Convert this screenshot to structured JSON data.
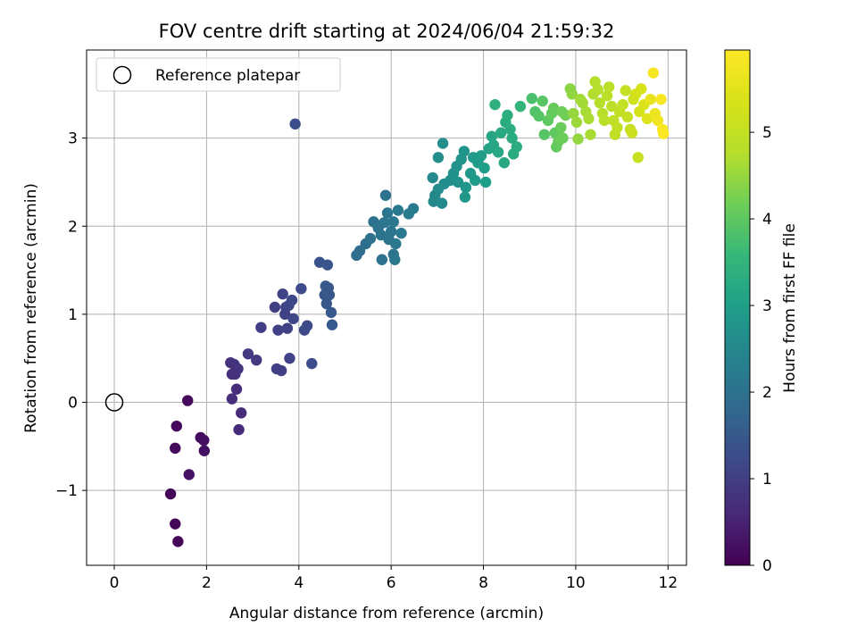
{
  "chart_data": {
    "type": "scatter",
    "title": "FOV centre drift starting at 2024/06/04 21:59:32",
    "xlabel": "Angular distance from reference (arcmin)",
    "ylabel": "Rotation from reference (arcmin)",
    "xlim": [
      -0.6,
      12.4
    ],
    "ylim": [
      -1.85,
      4.0
    ],
    "xticks": [
      0,
      2,
      4,
      6,
      8,
      10,
      12
    ],
    "yticks": [
      -1,
      0,
      1,
      2,
      3
    ],
    "ytick_labels": [
      "−1",
      "0",
      "1",
      "2",
      "3"
    ],
    "grid": true,
    "legend": {
      "position": "top-left",
      "entries": [
        {
          "label": "Reference platepar",
          "marker": "open-circle"
        }
      ]
    },
    "reference_point": {
      "x": 0,
      "y": 0
    },
    "colorbar": {
      "label": "Hours from first FF file",
      "range": [
        0,
        5.95
      ],
      "ticks": [
        0,
        1,
        2,
        3,
        4,
        5
      ],
      "colormap": "viridis"
    },
    "series": [
      {
        "columns": [
          "x",
          "y",
          "hours"
        ],
        "points": [
          [
            1.59,
            0.02,
            0.1
          ],
          [
            1.35,
            -0.27,
            0.12
          ],
          [
            1.32,
            -0.52,
            0.15
          ],
          [
            1.87,
            -0.4,
            0.18
          ],
          [
            1.94,
            -0.43,
            0.2
          ],
          [
            1.95,
            -0.55,
            0.22
          ],
          [
            1.62,
            -0.82,
            0.25
          ],
          [
            1.22,
            -1.04,
            0.05
          ],
          [
            1.32,
            -1.38,
            0.08
          ],
          [
            1.38,
            -1.58,
            0.09
          ],
          [
            2.52,
            0.45,
            0.8
          ],
          [
            2.6,
            0.43,
            0.78
          ],
          [
            2.68,
            0.38,
            0.82
          ],
          [
            2.55,
            0.32,
            0.75
          ],
          [
            2.62,
            0.32,
            0.76
          ],
          [
            2.9,
            0.55,
            0.9
          ],
          [
            3.08,
            0.48,
            0.92
          ],
          [
            2.65,
            0.15,
            0.7
          ],
          [
            2.55,
            0.04,
            0.68
          ],
          [
            2.75,
            -0.12,
            0.66
          ],
          [
            2.7,
            -0.31,
            0.64
          ],
          [
            3.18,
            0.85,
            1.0
          ],
          [
            3.48,
            1.08,
            1.05
          ],
          [
            3.65,
            1.23,
            1.1
          ],
          [
            3.72,
            1.08,
            1.08
          ],
          [
            3.78,
            1.1,
            1.12
          ],
          [
            3.7,
            1.0,
            1.05
          ],
          [
            3.88,
            0.95,
            1.15
          ],
          [
            3.85,
            1.16,
            1.18
          ],
          [
            4.05,
            1.29,
            1.2
          ],
          [
            4.12,
            0.82,
            1.22
          ],
          [
            4.18,
            0.87,
            1.24
          ],
          [
            3.55,
            0.82,
            1.02
          ],
          [
            3.75,
            0.84,
            1.06
          ],
          [
            3.8,
            0.5,
            1.08
          ],
          [
            3.52,
            0.38,
            1.0
          ],
          [
            3.62,
            0.36,
            1.02
          ],
          [
            4.28,
            0.44,
            1.25
          ],
          [
            3.92,
            3.16,
            1.3
          ],
          [
            4.45,
            1.59,
            1.4
          ],
          [
            4.62,
            1.56,
            1.42
          ],
          [
            4.58,
            1.32,
            1.45
          ],
          [
            4.64,
            1.3,
            1.46
          ],
          [
            4.56,
            1.22,
            1.44
          ],
          [
            4.66,
            1.22,
            1.47
          ],
          [
            4.6,
            1.12,
            1.48
          ],
          [
            4.7,
            1.02,
            1.5
          ],
          [
            4.72,
            0.88,
            1.52
          ],
          [
            5.25,
            1.67,
            1.9
          ],
          [
            5.32,
            1.72,
            1.92
          ],
          [
            5.45,
            1.8,
            1.95
          ],
          [
            5.55,
            1.86,
            1.98
          ],
          [
            5.62,
            2.05,
            2.0
          ],
          [
            5.72,
            1.98,
            2.02
          ],
          [
            5.78,
            1.9,
            2.05
          ],
          [
            5.85,
            2.04,
            2.08
          ],
          [
            5.92,
            2.15,
            2.1
          ],
          [
            5.88,
            2.35,
            2.06
          ],
          [
            5.95,
            1.85,
            2.04
          ],
          [
            6.0,
            1.94,
            2.06
          ],
          [
            6.05,
            2.05,
            2.12
          ],
          [
            6.1,
            1.8,
            2.14
          ],
          [
            6.15,
            2.18,
            2.15
          ],
          [
            6.22,
            1.92,
            2.18
          ],
          [
            6.38,
            2.14,
            2.22
          ],
          [
            6.48,
            2.2,
            2.25
          ],
          [
            6.05,
            1.68,
            2.1
          ],
          [
            6.08,
            1.62,
            2.12
          ],
          [
            5.8,
            1.62,
            2.02
          ],
          [
            6.92,
            2.28,
            2.5
          ],
          [
            6.95,
            2.35,
            2.52
          ],
          [
            6.9,
            2.55,
            2.55
          ],
          [
            7.02,
            2.42,
            2.58
          ],
          [
            7.1,
            2.26,
            2.56
          ],
          [
            7.15,
            2.48,
            2.6
          ],
          [
            7.02,
            2.78,
            2.62
          ],
          [
            7.12,
            2.94,
            2.64
          ],
          [
            7.28,
            2.52,
            2.66
          ],
          [
            7.35,
            2.6,
            2.7
          ],
          [
            7.42,
            2.68,
            2.72
          ],
          [
            7.45,
            2.5,
            2.74
          ],
          [
            7.52,
            2.76,
            2.76
          ],
          [
            7.58,
            2.85,
            2.78
          ],
          [
            7.62,
            2.44,
            2.8
          ],
          [
            7.6,
            2.33,
            2.82
          ],
          [
            7.72,
            2.6,
            2.84
          ],
          [
            7.78,
            2.78,
            2.88
          ],
          [
            7.82,
            2.52,
            2.9
          ],
          [
            7.88,
            2.72,
            2.92
          ],
          [
            7.95,
            2.8,
            2.95
          ],
          [
            8.02,
            2.66,
            2.98
          ],
          [
            8.05,
            2.5,
            3.0
          ],
          [
            8.12,
            2.88,
            3.1
          ],
          [
            8.18,
            3.02,
            3.15
          ],
          [
            8.22,
            2.92,
            3.18
          ],
          [
            8.25,
            3.38,
            3.4
          ],
          [
            8.32,
            2.84,
            3.2
          ],
          [
            8.38,
            3.06,
            3.25
          ],
          [
            8.45,
            2.72,
            3.22
          ],
          [
            8.48,
            3.18,
            3.3
          ],
          [
            8.52,
            3.26,
            3.35
          ],
          [
            8.58,
            3.1,
            3.32
          ],
          [
            8.62,
            3.0,
            3.28
          ],
          [
            8.65,
            2.82,
            3.26
          ],
          [
            8.72,
            2.9,
            3.3
          ],
          [
            8.8,
            3.36,
            3.5
          ],
          [
            9.05,
            3.45,
            3.8
          ],
          [
            9.12,
            3.3,
            3.85
          ],
          [
            9.2,
            3.25,
            3.9
          ],
          [
            9.28,
            3.42,
            3.95
          ],
          [
            9.32,
            3.04,
            3.92
          ],
          [
            9.4,
            3.2,
            4.0
          ],
          [
            9.48,
            3.28,
            4.05
          ],
          [
            9.52,
            3.34,
            4.08
          ],
          [
            9.55,
            3.06,
            4.02
          ],
          [
            9.62,
            2.96,
            4.1
          ],
          [
            9.68,
            3.12,
            4.12
          ],
          [
            9.7,
            3.3,
            4.15
          ],
          [
            9.78,
            3.26,
            4.18
          ],
          [
            9.58,
            2.9,
            4.06
          ],
          [
            9.72,
            3.0,
            4.14
          ],
          [
            9.88,
            3.56,
            4.4
          ],
          [
            9.92,
            3.5,
            4.45
          ],
          [
            9.95,
            3.28,
            4.5
          ],
          [
            10.02,
            3.18,
            4.55
          ],
          [
            10.05,
            2.99,
            4.48
          ],
          [
            10.1,
            3.44,
            4.6
          ],
          [
            10.15,
            3.4,
            4.62
          ],
          [
            10.22,
            3.3,
            4.65
          ],
          [
            10.28,
            3.22,
            4.68
          ],
          [
            10.32,
            3.04,
            4.66
          ],
          [
            10.38,
            3.5,
            4.72
          ],
          [
            10.42,
            3.64,
            4.75
          ],
          [
            10.48,
            3.55,
            4.78
          ],
          [
            10.52,
            3.4,
            4.8
          ],
          [
            10.58,
            3.28,
            4.82
          ],
          [
            10.62,
            3.2,
            4.84
          ],
          [
            10.68,
            3.48,
            4.86
          ],
          [
            10.72,
            3.58,
            4.88
          ],
          [
            10.78,
            3.36,
            4.9
          ],
          [
            10.82,
            3.2,
            4.92
          ],
          [
            10.85,
            3.04,
            4.94
          ],
          [
            10.9,
            3.12,
            4.96
          ],
          [
            10.95,
            3.3,
            4.98
          ],
          [
            11.02,
            3.38,
            5.0
          ],
          [
            11.08,
            3.54,
            5.02
          ],
          [
            11.12,
            3.24,
            5.04
          ],
          [
            11.18,
            3.1,
            5.06
          ],
          [
            11.25,
            3.44,
            5.2
          ],
          [
            11.3,
            3.5,
            5.25
          ],
          [
            11.35,
            2.78,
            5.1
          ],
          [
            11.38,
            3.3,
            5.3
          ],
          [
            11.42,
            3.56,
            5.35
          ],
          [
            11.48,
            3.38,
            5.4
          ],
          [
            11.55,
            3.22,
            5.45
          ],
          [
            11.62,
            3.44,
            5.6
          ],
          [
            11.68,
            3.74,
            5.8
          ],
          [
            11.72,
            3.28,
            5.7
          ],
          [
            11.78,
            3.2,
            5.75
          ],
          [
            11.85,
            3.44,
            5.85
          ],
          [
            11.88,
            3.1,
            5.9
          ],
          [
            11.9,
            3.05,
            5.92
          ],
          [
            11.22,
            3.06,
            5.12
          ]
        ]
      }
    ]
  }
}
